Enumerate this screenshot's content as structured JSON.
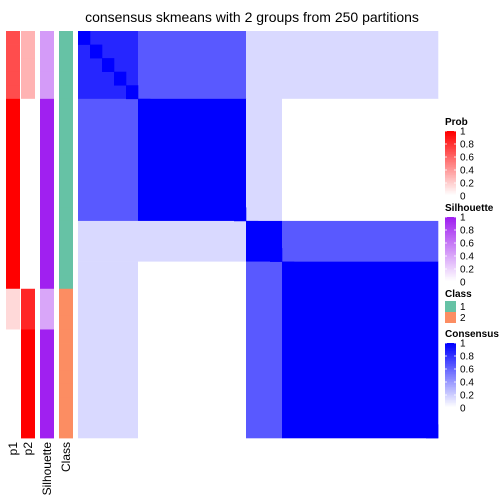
{
  "title": "consensus skmeans with 2 groups from 250 partitions",
  "chart_data": {
    "type": "heatmap",
    "title": "consensus skmeans with 2 groups from 250 partitions",
    "samples": 30,
    "annotation_columns": [
      "p1",
      "p2",
      "Silhouette",
      "Class"
    ],
    "annotations": {
      "p1": [
        0.7,
        0.7,
        0.7,
        0.7,
        0.7,
        1,
        1,
        1,
        1,
        1,
        1,
        1,
        1,
        1,
        1,
        1,
        1,
        1,
        1,
        0.15,
        0.15,
        0.15,
        0,
        0,
        0,
        0,
        0,
        0,
        0,
        0
      ],
      "p2": [
        0.3,
        0.3,
        0.3,
        0.3,
        0.3,
        0,
        0,
        0,
        0,
        0,
        0,
        0,
        0,
        0,
        0,
        0,
        0,
        0,
        0,
        0.85,
        0.85,
        0.85,
        1,
        1,
        1,
        1,
        1,
        1,
        1,
        1
      ],
      "Silhouette": [
        0.45,
        0.45,
        0.45,
        0.45,
        0.45,
        1,
        1,
        1,
        1,
        1,
        1,
        1,
        1,
        1,
        1,
        1,
        1,
        1,
        1,
        0.4,
        0.4,
        0.4,
        1,
        1,
        1,
        1,
        1,
        1,
        1,
        1
      ],
      "Class": [
        1,
        1,
        1,
        1,
        1,
        1,
        1,
        1,
        1,
        1,
        1,
        1,
        1,
        1,
        1,
        1,
        1,
        1,
        1,
        2,
        2,
        2,
        2,
        2,
        2,
        2,
        2,
        2,
        2,
        2
      ]
    },
    "matrix_blocks": [
      {
        "rows": [
          0,
          4
        ],
        "cols": [
          0,
          4
        ],
        "value": 0.85
      },
      {
        "rows": [
          0,
          4
        ],
        "cols": [
          5,
          13
        ],
        "value": 0.65
      },
      {
        "rows": [
          0,
          4
        ],
        "cols": [
          14,
          16
        ],
        "value": 0.15
      },
      {
        "rows": [
          0,
          4
        ],
        "cols": [
          17,
          29
        ],
        "value": 0.15
      },
      {
        "rows": [
          5,
          13
        ],
        "cols": [
          0,
          4
        ],
        "value": 0.65
      },
      {
        "rows": [
          5,
          13
        ],
        "cols": [
          5,
          13
        ],
        "value": 1.0
      },
      {
        "rows": [
          5,
          13
        ],
        "cols": [
          14,
          16
        ],
        "value": 0.15
      },
      {
        "rows": [
          5,
          13
        ],
        "cols": [
          17,
          29
        ],
        "value": 0.0
      },
      {
        "rows": [
          14,
          16
        ],
        "cols": [
          0,
          4
        ],
        "value": 0.15
      },
      {
        "rows": [
          14,
          16
        ],
        "cols": [
          5,
          13
        ],
        "value": 0.15
      },
      {
        "rows": [
          14,
          16
        ],
        "cols": [
          14,
          16
        ],
        "value": 1.0
      },
      {
        "rows": [
          14,
          16
        ],
        "cols": [
          17,
          29
        ],
        "value": 0.65
      },
      {
        "rows": [
          17,
          29
        ],
        "cols": [
          0,
          4
        ],
        "value": 0.15
      },
      {
        "rows": [
          17,
          29
        ],
        "cols": [
          5,
          13
        ],
        "value": 0.0
      },
      {
        "rows": [
          17,
          29
        ],
        "cols": [
          14,
          16
        ],
        "value": 0.65
      },
      {
        "rows": [
          17,
          29
        ],
        "cols": [
          17,
          29
        ],
        "value": 1.0
      }
    ],
    "legends": [
      {
        "name": "Prob",
        "type": "continuous",
        "colors": [
          "#ffffff",
          "#ff0000"
        ],
        "ticks": [
          "1",
          "0.8",
          "0.6",
          "0.4",
          "0.2",
          "0"
        ]
      },
      {
        "name": "Silhouette",
        "type": "continuous",
        "colors": [
          "#ffffff",
          "#a020f0"
        ],
        "ticks": [
          "1",
          "0.8",
          "0.6",
          "0.4",
          "0.2",
          "0"
        ]
      },
      {
        "name": "Class",
        "type": "discrete",
        "entries": [
          {
            "label": "1",
            "color": "#66c2a5"
          },
          {
            "label": "2",
            "color": "#fc8d62"
          }
        ]
      },
      {
        "name": "Consensus",
        "type": "continuous",
        "colors": [
          "#ffffff",
          "#0000ff"
        ],
        "ticks": [
          "1",
          "0.8",
          "0.6",
          "0.4",
          "0.2",
          "0"
        ]
      }
    ],
    "legend_placement": "right"
  }
}
